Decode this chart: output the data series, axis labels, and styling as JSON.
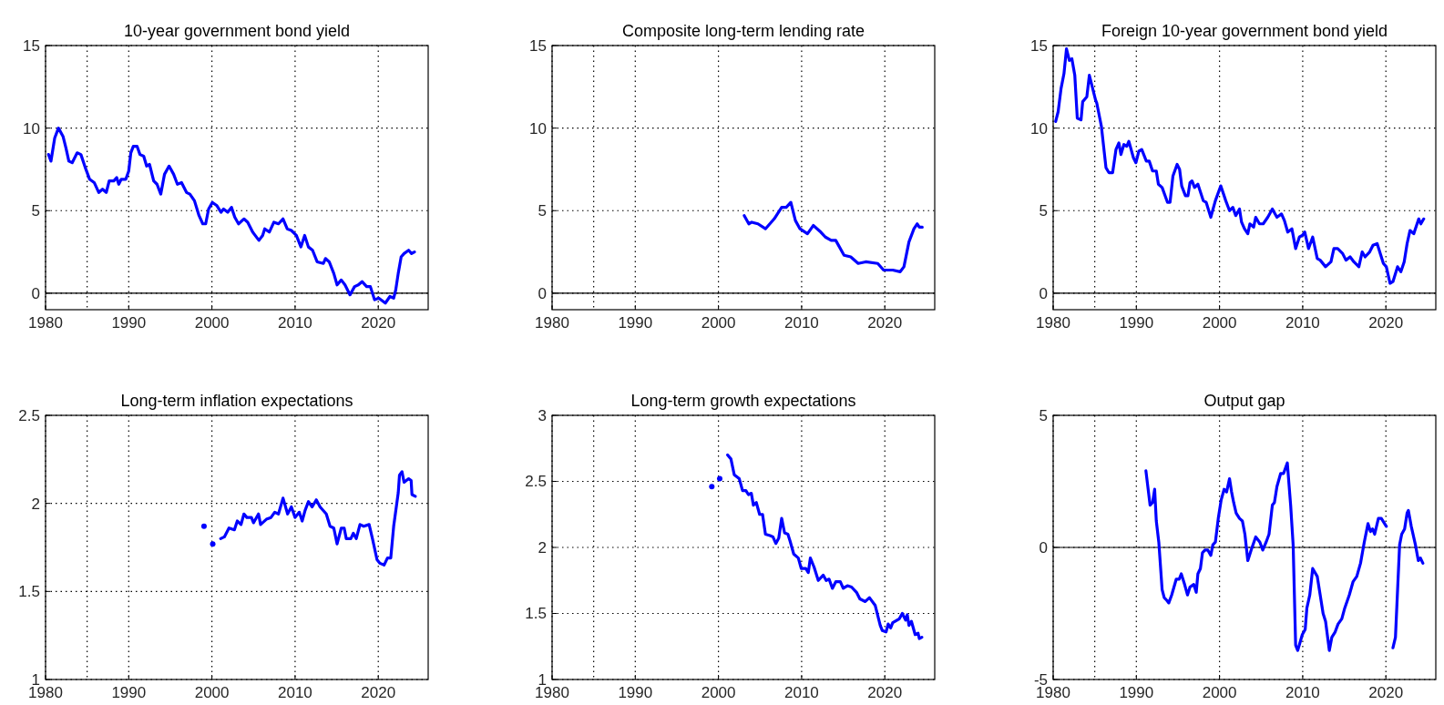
{
  "chart_data": [
    {
      "type": "line",
      "title": "10-year government bond yield",
      "xlim": [
        1980,
        2026
      ],
      "xticks": [
        1980,
        1990,
        2000,
        2010,
        2020
      ],
      "ylim": [
        -1,
        15
      ],
      "yticks": [
        0,
        5,
        10,
        15
      ],
      "grid": true,
      "line_style": "solid",
      "ref_lines": [
        {
          "axis": "x",
          "value": 1985,
          "color": "#000000",
          "line_style": "dotted"
        },
        {
          "axis": "y",
          "value": 0,
          "color": "#000000",
          "line_style": "solid"
        }
      ],
      "series": [
        {
          "color": "#0000ff",
          "x": [
            1980.36,
            1980.65,
            1981.1,
            1981.55,
            1982.1,
            1982.45,
            1982.8,
            1983.2,
            1983.8,
            1984.25,
            1984.85,
            1985.3,
            1985.85,
            1986.4,
            1986.85,
            1987.3,
            1987.65,
            1988.2,
            1988.55,
            1988.8,
            1989.1,
            1989.65,
            1990.0,
            1990.25,
            1990.55,
            1991.0,
            1991.35,
            1991.8,
            1992.15,
            1992.5,
            1993.0,
            1993.4,
            1993.85,
            1994.3,
            1994.85,
            1995.4,
            1995.85,
            1996.35,
            1996.95,
            1997.35,
            1997.9,
            1998.45,
            1998.9,
            1999.25,
            1999.6,
            2000.05,
            2000.6,
            2001.1,
            2001.4,
            2001.9,
            2002.35,
            2002.75,
            2003.2,
            2003.85,
            2004.3,
            2004.9,
            2005.65,
            2006.1,
            2006.35,
            2006.9,
            2007.45,
            2008.0,
            2008.55,
            2009.05,
            2009.55,
            2010.15,
            2010.7,
            2011.15,
            2011.6,
            2012.1,
            2012.65,
            2013.4,
            2013.65,
            2014.1,
            2014.65,
            2015.05,
            2015.55,
            2016.0,
            2016.6,
            2017.15,
            2017.6,
            2018.05,
            2018.6,
            2019.05,
            2019.55,
            2020.05,
            2020.85,
            2021.4,
            2021.85,
            2022.1,
            2022.4,
            2022.75,
            2023.1,
            2023.65,
            2024.0,
            2024.35
          ],
          "values": [
            8.4,
            8.0,
            9.4,
            10.0,
            9.5,
            8.8,
            8.0,
            7.9,
            8.5,
            8.4,
            7.5,
            6.9,
            6.7,
            6.1,
            6.3,
            6.1,
            6.8,
            6.8,
            7.0,
            6.6,
            6.9,
            6.9,
            7.4,
            8.5,
            8.9,
            8.9,
            8.4,
            8.3,
            7.7,
            7.8,
            6.8,
            6.6,
            6.0,
            7.2,
            7.7,
            7.2,
            6.6,
            6.7,
            6.1,
            6.0,
            5.6,
            4.7,
            4.2,
            4.2,
            5.1,
            5.5,
            5.3,
            4.9,
            5.1,
            4.9,
            5.2,
            4.6,
            4.2,
            4.5,
            4.3,
            3.7,
            3.2,
            3.5,
            3.9,
            3.7,
            4.3,
            4.2,
            4.5,
            3.9,
            3.8,
            3.5,
            2.8,
            3.5,
            2.8,
            2.6,
            1.9,
            1.8,
            2.1,
            1.9,
            1.2,
            0.5,
            0.8,
            0.5,
            -0.1,
            0.4,
            0.5,
            0.7,
            0.4,
            0.4,
            -0.4,
            -0.3,
            -0.6,
            -0.2,
            -0.3,
            0.2,
            1.2,
            2.2,
            2.4,
            2.6,
            2.4,
            2.5
          ]
        }
      ]
    },
    {
      "type": "line",
      "title": "Composite long-term lending rate",
      "xlim": [
        1980,
        2026
      ],
      "xticks": [
        1980,
        1990,
        2000,
        2010,
        2020
      ],
      "ylim": [
        -1,
        15
      ],
      "yticks": [
        0,
        5,
        10,
        15
      ],
      "grid": true,
      "line_style": "solid",
      "ref_lines": [
        {
          "axis": "x",
          "value": 1985,
          "color": "#000000",
          "line_style": "dotted"
        },
        {
          "axis": "y",
          "value": 0,
          "color": "#000000",
          "line_style": "solid"
        }
      ],
      "series": [
        {
          "color": "#0000ff",
          "x": [
            2003.1,
            2003.65,
            2004.0,
            2004.75,
            2005.65,
            2006.7,
            2007.6,
            2008.15,
            2008.7,
            2009.25,
            2009.8,
            2010.7,
            2011.4,
            2012.3,
            2012.85,
            2013.55,
            2014.1,
            2015.1,
            2015.9,
            2016.8,
            2017.7,
            2019.15,
            2019.85,
            2020.95,
            2021.85,
            2022.3,
            2022.9,
            2023.5,
            2023.9,
            2024.15,
            2024.5
          ],
          "values": [
            4.7,
            4.2,
            4.3,
            4.2,
            3.9,
            4.5,
            5.2,
            5.2,
            5.5,
            4.4,
            3.9,
            3.6,
            4.1,
            3.7,
            3.4,
            3.2,
            3.2,
            2.3,
            2.2,
            1.8,
            1.9,
            1.8,
            1.4,
            1.4,
            1.3,
            1.6,
            3.1,
            3.9,
            4.2,
            4.0,
            4.0
          ]
        }
      ]
    },
    {
      "type": "line",
      "title": "Foreign 10-year government bond yield",
      "xlim": [
        1980,
        2026
      ],
      "xticks": [
        1980,
        1990,
        2000,
        2010,
        2020
      ],
      "ylim": [
        -1,
        15
      ],
      "yticks": [
        0,
        5,
        10,
        15
      ],
      "grid": true,
      "line_style": "solid",
      "ref_lines": [
        {
          "axis": "x",
          "value": 1985,
          "color": "#000000",
          "line_style": "dotted"
        },
        {
          "axis": "y",
          "value": 0,
          "color": "#000000",
          "line_style": "solid"
        }
      ],
      "series": [
        {
          "color": "#0000ff",
          "x": [
            1980.3,
            1980.6,
            1980.95,
            1981.3,
            1981.6,
            1981.95,
            1982.25,
            1982.6,
            1982.9,
            1983.35,
            1983.55,
            1984.05,
            1984.35,
            1984.7,
            1985.1,
            1985.25,
            1985.8,
            1986.35,
            1986.7,
            1987.15,
            1987.55,
            1987.9,
            1988.15,
            1988.5,
            1988.85,
            1989.1,
            1989.65,
            1989.95,
            1990.3,
            1990.65,
            1991.2,
            1991.55,
            1991.95,
            1992.4,
            1992.65,
            1993.1,
            1993.75,
            1994.05,
            1994.4,
            1994.9,
            1995.2,
            1995.45,
            1995.9,
            1996.2,
            1996.45,
            1996.7,
            1997.0,
            1997.4,
            1998.05,
            1998.4,
            1998.95,
            1999.5,
            2000.15,
            2000.75,
            2001.2,
            2001.6,
            2001.95,
            2002.4,
            2002.65,
            2003.0,
            2003.4,
            2003.65,
            2004.1,
            2004.35,
            2004.8,
            2005.25,
            2005.8,
            2006.35,
            2006.9,
            2007.45,
            2007.8,
            2008.2,
            2008.7,
            2009.15,
            2009.6,
            2009.95,
            2010.25,
            2010.7,
            2011.2,
            2011.75,
            2012.1,
            2012.75,
            2013.4,
            2013.75,
            2014.2,
            2014.8,
            2015.2,
            2015.7,
            2016.15,
            2016.75,
            2017.15,
            2017.5,
            2018.05,
            2018.45,
            2018.95,
            2019.7,
            2020.05,
            2020.5,
            2020.85,
            2021.4,
            2021.8,
            2022.2,
            2022.55,
            2022.9,
            2023.35,
            2023.95,
            2024.2,
            2024.55
          ],
          "values": [
            10.4,
            11.0,
            12.4,
            13.3,
            14.8,
            14.1,
            14.2,
            13.2,
            10.6,
            10.5,
            11.6,
            11.9,
            13.2,
            12.5,
            11.7,
            11.5,
            10.1,
            7.6,
            7.3,
            7.3,
            8.7,
            9.1,
            8.4,
            9.0,
            8.9,
            9.2,
            8.2,
            7.9,
            8.6,
            8.7,
            8.0,
            8.0,
            7.4,
            7.4,
            6.6,
            6.4,
            5.5,
            5.5,
            7.1,
            7.8,
            7.5,
            6.5,
            5.9,
            5.9,
            6.7,
            6.8,
            6.4,
            6.6,
            5.6,
            5.5,
            4.6,
            5.6,
            6.5,
            5.6,
            5.0,
            5.2,
            4.7,
            5.1,
            4.3,
            3.9,
            3.6,
            4.2,
            4.0,
            4.6,
            4.2,
            4.2,
            4.6,
            5.1,
            4.6,
            4.8,
            4.4,
            3.7,
            3.9,
            2.7,
            3.4,
            3.5,
            3.7,
            2.7,
            3.4,
            2.1,
            2.0,
            1.6,
            1.9,
            2.7,
            2.7,
            2.4,
            2.0,
            2.2,
            1.9,
            1.6,
            2.5,
            2.2,
            2.5,
            2.9,
            3.0,
            1.8,
            1.6,
            0.6,
            0.7,
            1.6,
            1.3,
            1.9,
            3.0,
            3.8,
            3.6,
            4.5,
            4.2,
            4.5
          ]
        }
      ]
    },
    {
      "type": "line",
      "title": "Long-term inflation expectations",
      "xlim": [
        1980,
        2026
      ],
      "xticks": [
        1980,
        1990,
        2000,
        2010,
        2020
      ],
      "ylim": [
        1,
        2.5
      ],
      "yticks": [
        1,
        1.5,
        2,
        2.5
      ],
      "grid": true,
      "line_style": "solid",
      "ref_lines": [
        {
          "axis": "x",
          "value": 1985,
          "color": "#000000",
          "line_style": "dotted"
        }
      ],
      "series": [
        {
          "type": "scatter",
          "marker": "circle",
          "color": "#0000ff",
          "x": [
            1999.05,
            2000.1
          ],
          "values": [
            1.87,
            1.77
          ]
        },
        {
          "color": "#0000ff",
          "x": [
            2001.05,
            2001.5,
            2002.05,
            2002.7,
            2003.05,
            2003.5,
            2003.85,
            2004.2,
            2004.75,
            2005.0,
            2005.6,
            2005.85,
            2006.55,
            2007.1,
            2007.55,
            2008.0,
            2008.55,
            2009.1,
            2009.55,
            2010.0,
            2010.5,
            2010.85,
            2011.2,
            2011.6,
            2012.05,
            2012.55,
            2013.0,
            2013.75,
            2014.2,
            2014.65,
            2015.05,
            2015.55,
            2015.9,
            2016.15,
            2016.7,
            2017.0,
            2017.35,
            2017.8,
            2018.25,
            2018.9,
            2019.3,
            2019.85,
            2020.2,
            2020.7,
            2021.1,
            2021.5,
            2021.85,
            2022.4,
            2022.55,
            2022.85,
            2023.1,
            2023.65,
            2023.95,
            2024.05,
            2024.45
          ],
          "values": [
            1.8,
            1.81,
            1.86,
            1.85,
            1.9,
            1.88,
            1.94,
            1.92,
            1.92,
            1.89,
            1.94,
            1.88,
            1.91,
            1.92,
            1.95,
            1.94,
            2.03,
            1.94,
            1.98,
            1.92,
            1.95,
            1.9,
            1.96,
            2.01,
            1.98,
            2.02,
            1.98,
            1.94,
            1.87,
            1.86,
            1.77,
            1.86,
            1.86,
            1.8,
            1.8,
            1.83,
            1.8,
            1.88,
            1.87,
            1.88,
            1.8,
            1.68,
            1.66,
            1.65,
            1.69,
            1.69,
            1.87,
            2.06,
            2.16,
            2.18,
            2.12,
            2.14,
            2.13,
            2.05,
            2.04
          ]
        }
      ]
    },
    {
      "type": "line",
      "title": "Long-term growth expectations",
      "xlim": [
        1980,
        2026
      ],
      "xticks": [
        1980,
        1990,
        2000,
        2010,
        2020
      ],
      "ylim": [
        1,
        3
      ],
      "yticks": [
        1,
        1.5,
        2,
        2.5,
        3
      ],
      "grid": true,
      "line_style": "solid",
      "ref_lines": [
        {
          "axis": "x",
          "value": 1985,
          "color": "#000000",
          "line_style": "dotted"
        }
      ],
      "series": [
        {
          "type": "scatter",
          "marker": "circle",
          "color": "#0000ff",
          "x": [
            1999.2,
            2000.15
          ],
          "values": [
            2.46,
            2.52
          ]
        },
        {
          "color": "#0000ff",
          "x": [
            2001.1,
            2001.5,
            2001.9,
            2002.5,
            2002.9,
            2003.3,
            2003.6,
            2003.95,
            2004.2,
            2004.55,
            2004.95,
            2005.3,
            2005.65,
            2006.2,
            2006.55,
            2006.9,
            2007.25,
            2007.6,
            2007.95,
            2008.35,
            2008.6,
            2009.05,
            2009.6,
            2009.95,
            2010.5,
            2010.8,
            2011.05,
            2011.5,
            2012.0,
            2012.6,
            2012.95,
            2013.3,
            2013.7,
            2014.1,
            2014.65,
            2015.0,
            2015.5,
            2016.0,
            2016.6,
            2017.0,
            2017.65,
            2018.15,
            2018.85,
            2019.45,
            2019.7,
            2020.15,
            2020.4,
            2020.7,
            2020.95,
            2021.75,
            2022.1,
            2022.5,
            2022.7,
            2022.9,
            2023.2,
            2023.65,
            2024.0,
            2024.15,
            2024.45
          ],
          "values": [
            2.7,
            2.67,
            2.55,
            2.52,
            2.43,
            2.43,
            2.4,
            2.41,
            2.32,
            2.34,
            2.25,
            2.25,
            2.1,
            2.09,
            2.08,
            2.03,
            2.07,
            2.22,
            2.11,
            2.1,
            2.05,
            1.95,
            1.92,
            1.84,
            1.84,
            1.81,
            1.92,
            1.85,
            1.75,
            1.79,
            1.75,
            1.76,
            1.69,
            1.74,
            1.74,
            1.69,
            1.71,
            1.7,
            1.66,
            1.61,
            1.59,
            1.62,
            1.56,
            1.41,
            1.37,
            1.36,
            1.42,
            1.39,
            1.43,
            1.46,
            1.5,
            1.45,
            1.49,
            1.41,
            1.44,
            1.34,
            1.35,
            1.31,
            1.32
          ]
        }
      ]
    },
    {
      "type": "line",
      "title": "Output gap",
      "xlim": [
        1980,
        2026
      ],
      "xticks": [
        1980,
        1990,
        2000,
        2010,
        2020
      ],
      "ylim": [
        -5,
        5
      ],
      "yticks": [
        -5,
        0,
        5
      ],
      "grid": true,
      "line_style": "solid",
      "ref_lines": [
        {
          "axis": "x",
          "value": 1985,
          "color": "#000000",
          "line_style": "dotted"
        },
        {
          "axis": "y",
          "value": 0,
          "color": "#000000",
          "line_style": "solid"
        }
      ],
      "series": [
        {
          "color": "#0000ff",
          "x": [
            1991.15,
            1991.65,
            1991.95,
            1992.2,
            1992.4,
            1992.7,
            1993.1,
            1993.35,
            1993.65,
            1993.9,
            1994.25,
            1994.8,
            1995.15,
            1995.4,
            1995.8,
            1996.15,
            1996.45,
            1996.9,
            1997.2,
            1997.4,
            1997.7,
            1997.95,
            1998.25,
            1998.6,
            1998.95,
            1999.2,
            1999.5,
            1999.85,
            2000.2,
            2000.55,
            2000.85,
            2001.2,
            2001.45,
            2001.7,
            2002.0,
            2002.4,
            2002.75,
            2003.05,
            2003.4,
            2003.8,
            2004.35,
            2004.85,
            2005.2,
            2005.6,
            2005.95,
            2006.35,
            2006.6,
            2006.9,
            2007.35,
            2007.7,
            2008.15,
            2008.55,
            2008.85,
            2009.15,
            2009.4,
            2009.95,
            2010.3,
            2010.5,
            2010.85,
            2011.2,
            2011.75,
            2012.05,
            2012.45,
            2012.75,
            2013.2,
            2013.5,
            2013.9,
            2014.25,
            2014.7,
            2015.05,
            2015.6,
            2016.05,
            2016.5,
            2016.95,
            2017.4,
            2017.85,
            2018.15,
            2018.4,
            2018.65,
            2019.1,
            2019.45,
            2020.05,
            2020.4,
            2020.85,
            2021.15,
            2021.65,
            2021.9,
            2022.25,
            2022.55,
            2022.7,
            2023.05,
            2023.55,
            2023.9,
            2024.15,
            2024.45
          ],
          "values": [
            2.9,
            1.6,
            1.7,
            2.2,
            1.0,
            0.2,
            -1.6,
            -1.9,
            -2.0,
            -2.1,
            -1.8,
            -1.2,
            -1.2,
            -1.0,
            -1.4,
            -1.8,
            -1.5,
            -1.4,
            -1.7,
            -1.0,
            -0.8,
            -0.2,
            -0.1,
            -0.1,
            -0.3,
            0.1,
            0.2,
            1.1,
            1.8,
            2.2,
            2.1,
            2.6,
            2.1,
            1.7,
            1.3,
            1.1,
            1.0,
            0.5,
            -0.5,
            -0.1,
            0.4,
            0.2,
            -0.1,
            0.2,
            0.5,
            1.6,
            1.7,
            2.3,
            2.8,
            2.8,
            3.2,
            1.6,
            0.1,
            -3.7,
            -3.9,
            -3.3,
            -3.1,
            -2.3,
            -1.8,
            -0.8,
            -1.1,
            -1.7,
            -2.5,
            -2.8,
            -3.9,
            -3.4,
            -3.2,
            -2.9,
            -2.7,
            -2.3,
            -1.8,
            -1.3,
            -1.1,
            -0.6,
            0.2,
            0.9,
            0.6,
            0.7,
            0.5,
            1.1,
            1.1,
            0.8,
            null,
            -3.8,
            -3.4,
            0.1,
            0.5,
            0.7,
            1.3,
            1.4,
            0.8,
            0.1,
            -0.5,
            -0.4,
            -0.6
          ]
        }
      ]
    }
  ]
}
